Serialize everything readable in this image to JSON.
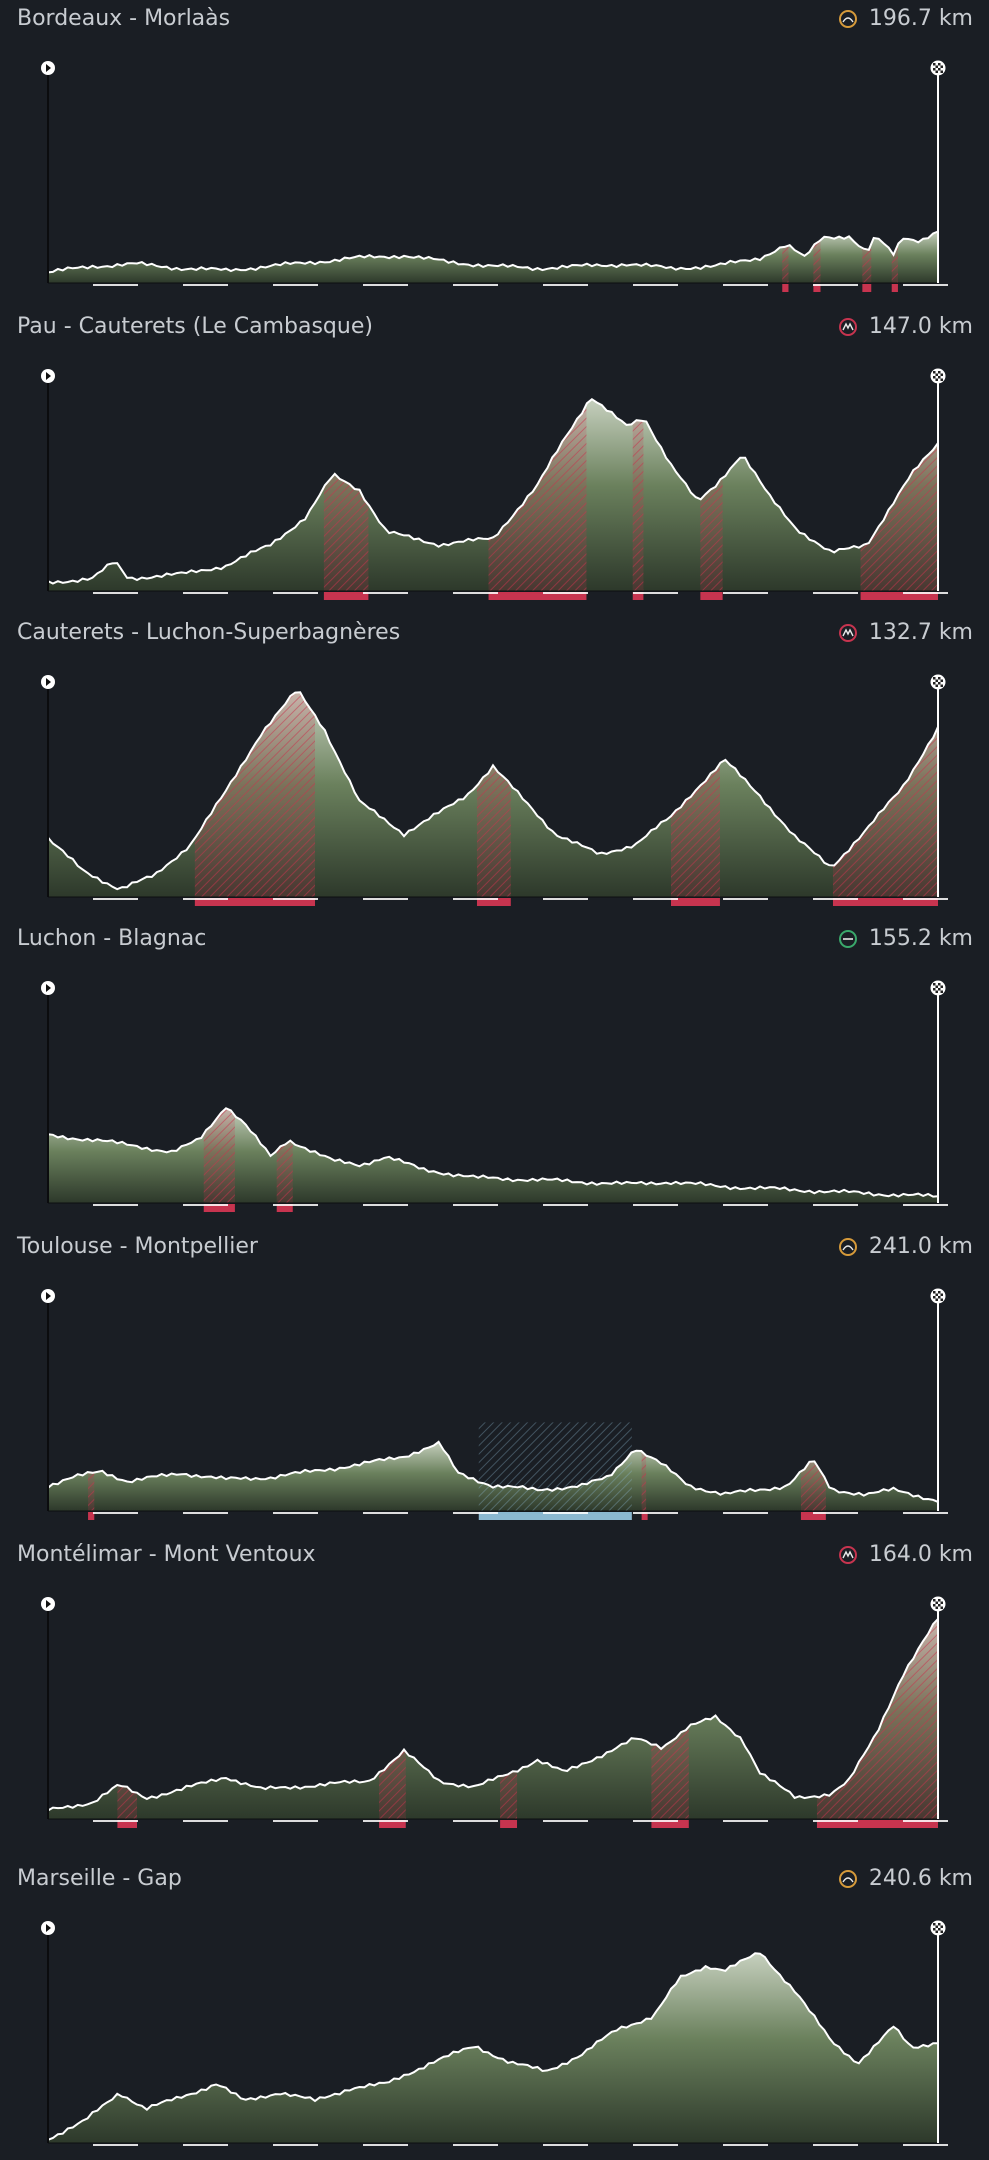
{
  "colors": {
    "background": "#1a1e24",
    "terrain": "#5f7550",
    "terrain_light": "#c9d4c0",
    "climb": "#c7344f",
    "profile_line": "#ffffff",
    "cobbles_or_gravel": "#8bb8d0"
  },
  "stages": [
    {
      "title": "Bordeaux - Morlaàs",
      "distance": "196.7 km",
      "type_icon": "hilly-icon",
      "type_color": "#d69a3a"
    },
    {
      "title": "Pau - Cauterets (Le Cambasque)",
      "distance": "147.0 km",
      "type_icon": "mountain-icon",
      "type_color": "#c7344f"
    },
    {
      "title": "Cauterets - Luchon-Superbagnères",
      "distance": "132.7 km",
      "type_icon": "mountain-icon",
      "type_color": "#c7344f"
    },
    {
      "title": "Luchon - Blagnac",
      "distance": "155.2 km",
      "type_icon": "flat-icon",
      "type_color": "#3aa86b"
    },
    {
      "title": "Toulouse - Montpellier",
      "distance": "241.0 km",
      "type_icon": "hilly-icon",
      "type_color": "#d69a3a"
    },
    {
      "title": "Montélimar - Mont Ventoux",
      "distance": "164.0 km",
      "type_icon": "mountain-icon",
      "type_color": "#c7344f"
    },
    {
      "title": "Marseille - Gap",
      "distance": "240.6 km",
      "type_icon": "hilly-icon",
      "type_color": "#d69a3a"
    }
  ]
}
